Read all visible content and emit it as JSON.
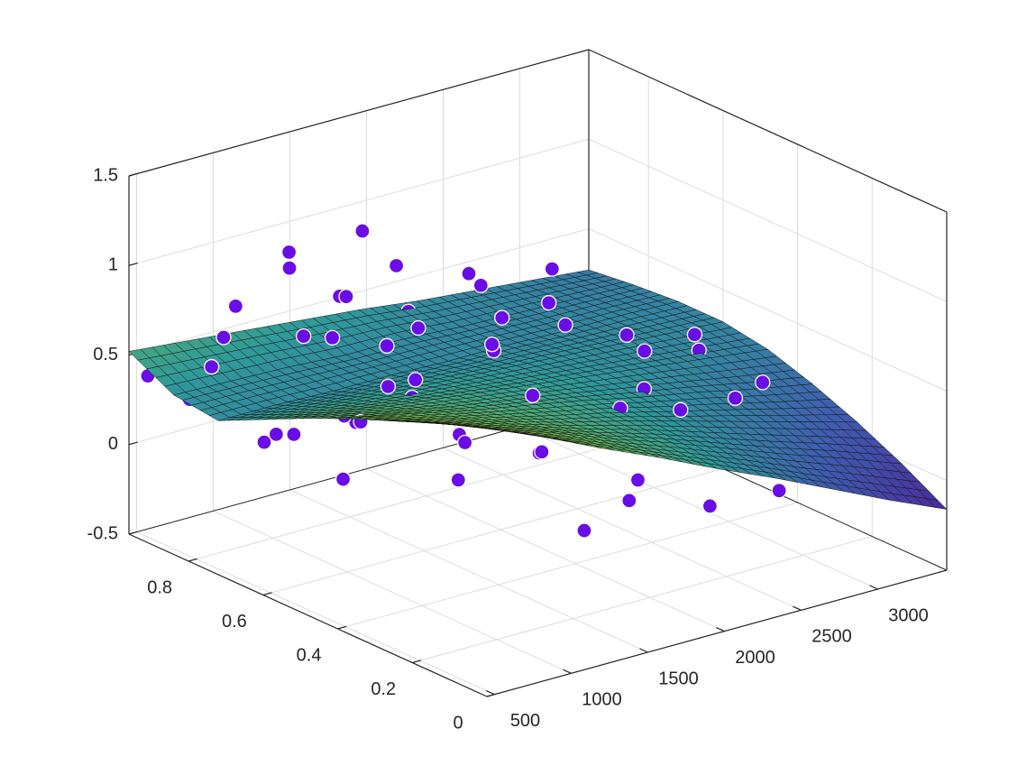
{
  "chart_data": {
    "type": "surface3d",
    "xlim": [
      450,
      3450
    ],
    "ylim": [
      0,
      0.96
    ],
    "zlim": [
      -0.5,
      1.5
    ],
    "xticks": [
      500,
      1000,
      1500,
      2000,
      2500,
      3000
    ],
    "yticks": [
      0,
      0.2,
      0.4,
      0.6,
      0.8
    ],
    "zticks": [
      -0.5,
      0,
      0.5,
      1,
      1.5
    ],
    "grid": true,
    "colormap": [
      "#4b2a9a",
      "#3f5bb0",
      "#2f9a9a",
      "#6cbc50",
      "#d4dc3a"
    ],
    "surface": {
      "x": [
        450,
        825,
        1200,
        1575,
        1950,
        2325,
        2700,
        3075,
        3450
      ],
      "y": [
        0,
        0.12,
        0.24,
        0.36,
        0.48,
        0.6,
        0.72,
        0.84,
        0.96
      ],
      "z": [
        [
          1.0,
          0.86,
          0.71,
          0.57,
          0.42,
          0.28,
          0.13,
          -0.02,
          -0.16
        ],
        [
          0.91,
          0.79,
          0.68,
          0.56,
          0.45,
          0.33,
          0.21,
          0.1,
          -0.02
        ],
        [
          0.81,
          0.72,
          0.63,
          0.54,
          0.46,
          0.37,
          0.28,
          0.19,
          0.1
        ],
        [
          0.71,
          0.65,
          0.58,
          0.52,
          0.46,
          0.39,
          0.33,
          0.26,
          0.2
        ],
        [
          0.6,
          0.56,
          0.52,
          0.48,
          0.44,
          0.4,
          0.36,
          0.32,
          0.28
        ],
        [
          0.48,
          0.46,
          0.44,
          0.42,
          0.4,
          0.38,
          0.36,
          0.34,
          0.32
        ],
        [
          0.36,
          0.36,
          0.35,
          0.35,
          0.34,
          0.34,
          0.33,
          0.33,
          0.32
        ],
        [
          0.39,
          0.38,
          0.37,
          0.35,
          0.35,
          0.33,
          0.32,
          0.31,
          0.3
        ],
        [
          0.52,
          0.49,
          0.46,
          0.43,
          0.4,
          0.36,
          0.33,
          0.3,
          0.27
        ]
      ]
    },
    "scatter": {
      "color": "#6a0ce6",
      "edgecolor": "#ffffff",
      "x": [
        500,
        600,
        700,
        800,
        650,
        900,
        1000,
        1100,
        1200,
        1300,
        1400,
        1500,
        1600,
        1700,
        1800,
        1900,
        2000,
        2100,
        2200,
        2300,
        2400,
        2500,
        2600,
        2700,
        2800,
        2900,
        3000,
        3100,
        3200,
        3300,
        3150,
        3250,
        2950,
        2800,
        2600,
        2400,
        2200,
        2000,
        1800,
        1600,
        1400,
        1200,
        1000,
        900,
        750,
        600,
        550,
        1100,
        1500,
        2100,
        1700,
        2300,
        2500,
        1300,
        1900,
        700,
        850,
        1250,
        2700,
        3050,
        1450,
        2050,
        3350,
        950
      ],
      "y": [
        0.93,
        0.8,
        0.7,
        0.85,
        0.6,
        0.75,
        0.9,
        0.65,
        0.8,
        0.55,
        0.92,
        0.7,
        0.85,
        0.6,
        0.95,
        0.78,
        0.88,
        0.66,
        0.93,
        0.72,
        0.85,
        0.62,
        0.9,
        0.55,
        0.8,
        0.45,
        0.7,
        0.35,
        0.6,
        0.25,
        0.15,
        0.4,
        0.2,
        0.3,
        0.1,
        0.38,
        0.2,
        0.45,
        0.15,
        0.35,
        0.25,
        0.5,
        0.3,
        0.45,
        0.2,
        0.4,
        0.1,
        0.12,
        0.05,
        0.08,
        0.5,
        0.55,
        0.42,
        0.88,
        0.93,
        0.9,
        0.55,
        0.68,
        0.75,
        0.5,
        0.15,
        0.3,
        0.1,
        0.62
      ],
      "z": [
        0.4,
        0.55,
        0.2,
        0.62,
        0.35,
        0.15,
        0.7,
        0.3,
        0.58,
        0.45,
        0.8,
        0.55,
        0.66,
        0.38,
        0.52,
        0.48,
        0.71,
        0.42,
        0.36,
        0.5,
        0.6,
        0.25,
        0.44,
        0.47,
        0.39,
        0.52,
        0.2,
        0.3,
        0.18,
        0.08,
        -0.05,
        0.1,
        0.15,
        0.33,
        0.05,
        0.4,
        0.5,
        0.32,
        0.25,
        0.58,
        0.4,
        0.62,
        0.55,
        0.7,
        0.45,
        0.62,
        0.8,
        0.6,
        0.3,
        0.1,
        0.7,
        0.62,
        0.55,
        0.95,
        0.88,
        0.25,
        0.1,
        0.2,
        0.65,
        0.35,
        0.05,
        0.45,
        -0.1,
        0.8
      ]
    }
  }
}
